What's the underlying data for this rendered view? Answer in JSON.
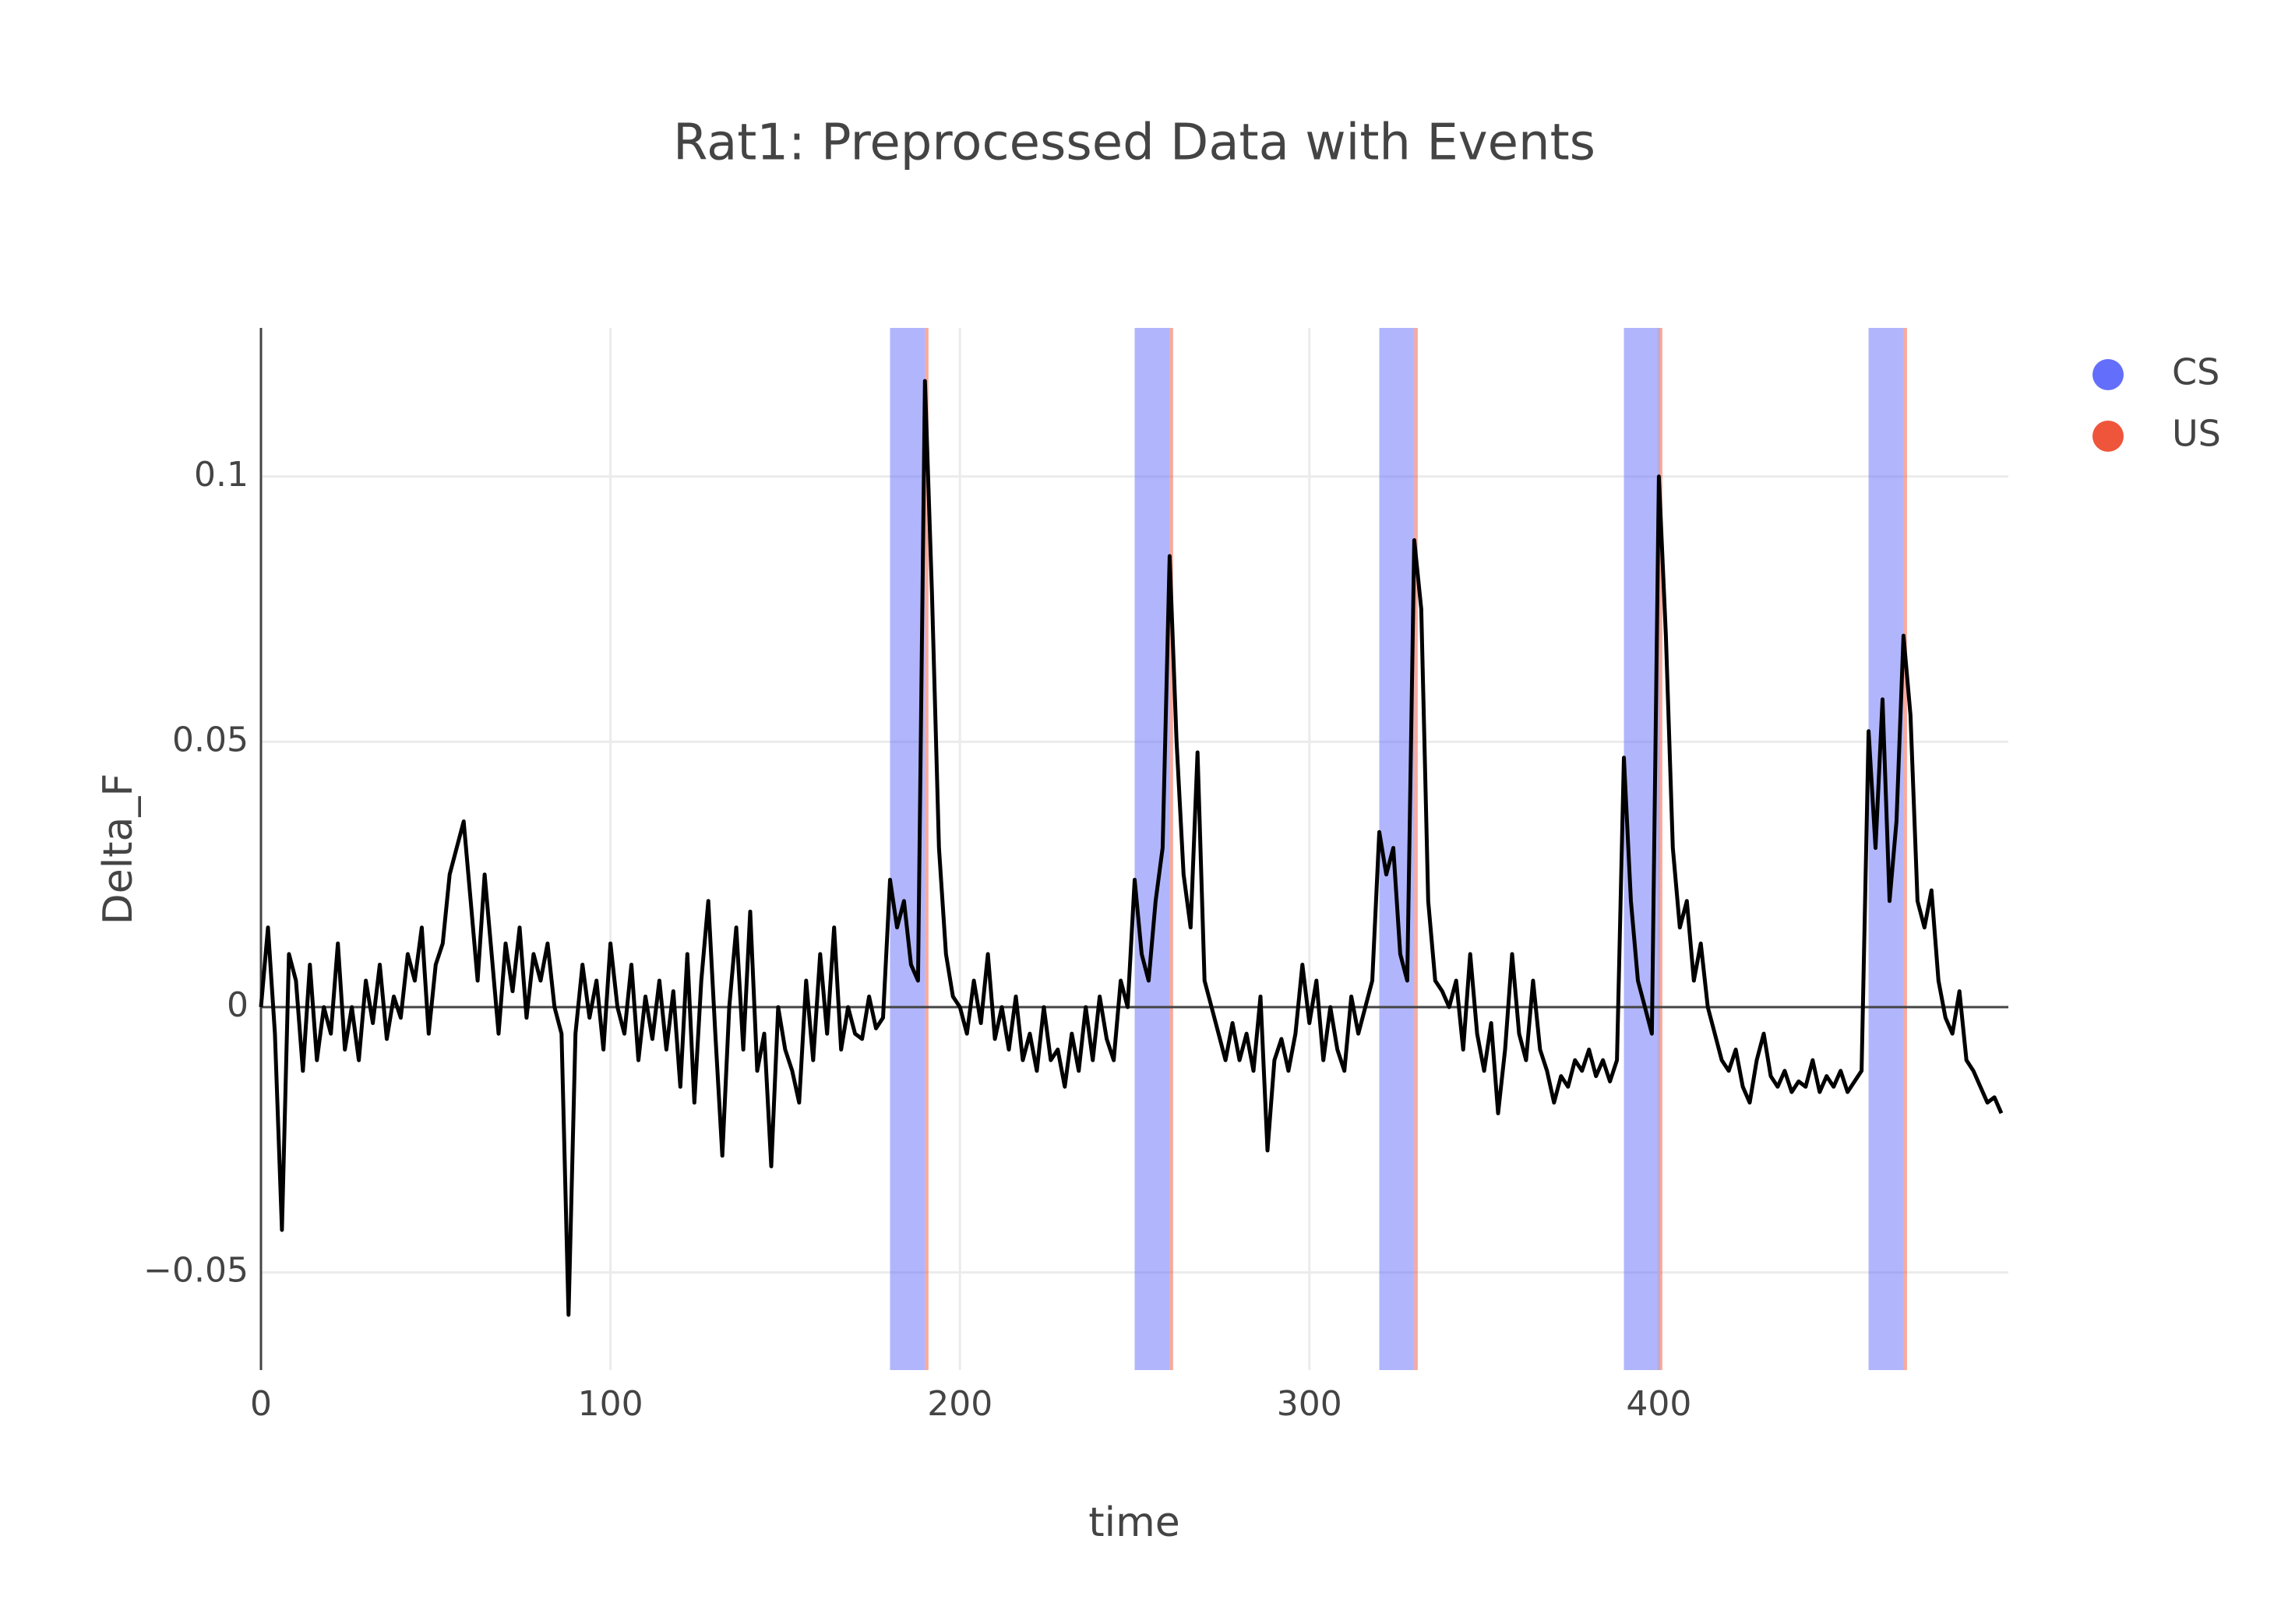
{
  "chart_data": {
    "type": "line",
    "title": "Rat1: Preprocessed Data with Events",
    "x_label": "time",
    "y_label": "Delta_F",
    "line_color": "#000000",
    "x": [
      0,
      2,
      4,
      6,
      8,
      10,
      12,
      14,
      16,
      18,
      20,
      22,
      24,
      26,
      28,
      30,
      32,
      34,
      36,
      38,
      40,
      42,
      44,
      46,
      48,
      50,
      52,
      54,
      56,
      58,
      60,
      62,
      64,
      66,
      68,
      70,
      72,
      74,
      76,
      78,
      80,
      82,
      84,
      86,
      88,
      90,
      92,
      94,
      96,
      98,
      100,
      102,
      104,
      106,
      108,
      110,
      112,
      114,
      116,
      118,
      120,
      122,
      124,
      126,
      128,
      130,
      132,
      134,
      136,
      138,
      140,
      142,
      144,
      146,
      148,
      150,
      152,
      154,
      156,
      158,
      160,
      162,
      164,
      166,
      168,
      170,
      172,
      174,
      176,
      178,
      180,
      182,
      184,
      186,
      188,
      190,
      192,
      194,
      196,
      198,
      200,
      202,
      204,
      206,
      208,
      210,
      212,
      214,
      216,
      218,
      220,
      222,
      224,
      226,
      228,
      230,
      232,
      234,
      236,
      238,
      240,
      242,
      244,
      246,
      248,
      250,
      252,
      254,
      256,
      258,
      260,
      262,
      264,
      266,
      268,
      270,
      272,
      274,
      276,
      278,
      280,
      282,
      284,
      286,
      288,
      290,
      292,
      294,
      296,
      298,
      300,
      302,
      304,
      306,
      308,
      310,
      312,
      314,
      316,
      318,
      320,
      322,
      324,
      326,
      328,
      330,
      332,
      334,
      336,
      338,
      340,
      342,
      344,
      346,
      348,
      350,
      352,
      354,
      356,
      358,
      360,
      362,
      364,
      366,
      368,
      370,
      372,
      374,
      376,
      378,
      380,
      382,
      384,
      386,
      388,
      390,
      392,
      394,
      396,
      398,
      400,
      402,
      404,
      406,
      408,
      410,
      412,
      414,
      416,
      418,
      420,
      422,
      424,
      426,
      428,
      430,
      432,
      434,
      436,
      438,
      440,
      442,
      444,
      446,
      448,
      450,
      452,
      454,
      456,
      458,
      460,
      462,
      464,
      466,
      468,
      470,
      472,
      474,
      476,
      478,
      480,
      482,
      484,
      486,
      488,
      490,
      492,
      494,
      496,
      498
    ],
    "values": [
      0.0,
      0.015,
      -0.005,
      -0.042,
      0.01,
      0.005,
      -0.012,
      0.008,
      -0.01,
      0.0,
      -0.005,
      0.012,
      -0.008,
      0.0,
      -0.01,
      0.005,
      -0.003,
      0.008,
      -0.006,
      0.002,
      -0.002,
      0.01,
      0.005,
      0.015,
      -0.005,
      0.008,
      0.012,
      0.025,
      0.03,
      0.035,
      0.02,
      0.005,
      0.025,
      0.01,
      -0.005,
      0.012,
      0.003,
      0.015,
      -0.002,
      0.01,
      0.005,
      0.012,
      0.0,
      -0.005,
      -0.058,
      -0.005,
      0.008,
      -0.002,
      0.005,
      -0.008,
      0.012,
      0.0,
      -0.005,
      0.008,
      -0.01,
      0.002,
      -0.006,
      0.005,
      -0.008,
      0.003,
      -0.015,
      0.01,
      -0.018,
      0.005,
      0.02,
      -0.005,
      -0.028,
      0.0,
      0.015,
      -0.008,
      0.018,
      -0.012,
      -0.005,
      -0.03,
      0.0,
      -0.008,
      -0.012,
      -0.018,
      0.005,
      -0.01,
      0.01,
      -0.005,
      0.015,
      -0.008,
      0.0,
      -0.005,
      -0.006,
      0.002,
      -0.004,
      -0.002,
      0.024,
      0.015,
      0.02,
      0.008,
      0.005,
      0.118,
      0.078,
      0.03,
      0.01,
      0.002,
      0.0,
      -0.005,
      0.005,
      -0.003,
      0.01,
      -0.006,
      0.0,
      -0.008,
      0.002,
      -0.01,
      -0.005,
      -0.012,
      0.0,
      -0.01,
      -0.008,
      -0.015,
      -0.005,
      -0.012,
      0.0,
      -0.01,
      0.002,
      -0.006,
      -0.01,
      0.005,
      0.0,
      0.024,
      0.01,
      0.005,
      0.02,
      0.03,
      0.085,
      0.05,
      0.025,
      0.015,
      0.048,
      0.005,
      0.0,
      -0.005,
      -0.01,
      -0.003,
      -0.01,
      -0.005,
      -0.012,
      0.002,
      -0.027,
      -0.01,
      -0.006,
      -0.012,
      -0.005,
      0.008,
      -0.003,
      0.005,
      -0.01,
      0.0,
      -0.008,
      -0.012,
      0.002,
      -0.005,
      0.0,
      0.005,
      0.033,
      0.025,
      0.03,
      0.01,
      0.005,
      0.088,
      0.075,
      0.02,
      0.005,
      0.003,
      0.0,
      0.005,
      -0.008,
      0.01,
      -0.005,
      -0.012,
      -0.003,
      -0.02,
      -0.008,
      0.01,
      -0.005,
      -0.01,
      0.005,
      -0.008,
      -0.012,
      -0.018,
      -0.013,
      -0.015,
      -0.01,
      -0.012,
      -0.008,
      -0.013,
      -0.01,
      -0.014,
      -0.01,
      0.047,
      0.02,
      0.005,
      0.0,
      -0.005,
      0.1,
      0.07,
      0.03,
      0.015,
      0.02,
      0.005,
      0.012,
      0.0,
      -0.005,
      -0.01,
      -0.012,
      -0.008,
      -0.015,
      -0.018,
      -0.01,
      -0.005,
      -0.013,
      -0.015,
      -0.012,
      -0.016,
      -0.014,
      -0.015,
      -0.01,
      -0.016,
      -0.013,
      -0.015,
      -0.012,
      -0.016,
      -0.014,
      -0.012,
      0.052,
      0.03,
      0.058,
      0.02,
      0.035,
      0.07,
      0.055,
      0.02,
      0.015,
      0.022,
      0.005,
      -0.002,
      -0.005,
      0.003,
      -0.01,
      -0.012,
      -0.015,
      -0.018,
      -0.017,
      -0.02
    ],
    "events": [
      {
        "name": "CS",
        "color": "#636efa",
        "intervals": [
          [
            180,
            190
          ],
          [
            250,
            260
          ],
          [
            320,
            330
          ],
          [
            390,
            400
          ],
          [
            460,
            470
          ]
        ]
      },
      {
        "name": "US",
        "color": "#ef553b",
        "intervals": [
          [
            190,
            191
          ],
          [
            260,
            261
          ],
          [
            330,
            331
          ],
          [
            400,
            401
          ],
          [
            470,
            471
          ]
        ]
      }
    ],
    "xlim": [
      0,
      500
    ],
    "xticks": [
      0,
      100,
      200,
      300,
      400
    ],
    "ylim": [
      -0.0684,
      0.128
    ],
    "yticks": [
      {
        "value": -0.05,
        "label": "−0.05"
      },
      0,
      0.05,
      0.1
    ],
    "grid": true,
    "zero_line": true
  }
}
